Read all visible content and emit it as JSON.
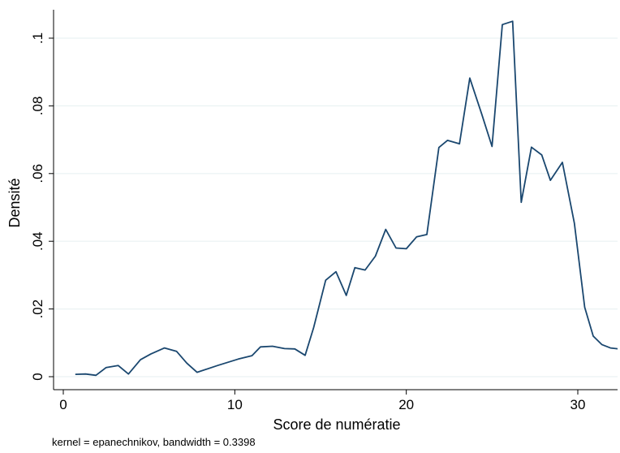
{
  "chart_data": {
    "type": "line",
    "title": "",
    "xlabel": "Score de numératie",
    "ylabel": "Densité",
    "note": "kernel = epanechnikov, bandwidth = 0.3398",
    "xlim": [
      0,
      32.5
    ],
    "ylim": [
      0,
      0.108
    ],
    "x_ticks": [
      0,
      10,
      20,
      30
    ],
    "x_tick_labels": [
      "0",
      "10",
      "20",
      "30"
    ],
    "y_ticks": [
      0,
      0.02,
      0.04,
      0.06,
      0.08,
      0.1
    ],
    "y_tick_labels": [
      "0",
      ".02",
      ".04",
      ".06",
      ".08",
      ".1"
    ],
    "grid": true,
    "legend": "none",
    "line_color": "#1a476f",
    "series": [
      {
        "x": [
          0.7,
          1.3,
          1.9,
          2.5,
          3.2,
          3.8,
          4.5,
          5.1,
          5.9,
          6.6,
          7.2,
          7.8,
          9.0,
          10.2,
          11.0,
          11.5,
          12.2,
          12.9,
          13.5,
          14.1,
          14.6,
          15.3,
          15.9,
          16.5,
          17.0,
          17.6,
          18.2,
          18.8,
          19.4,
          20.0,
          20.6,
          21.2,
          21.9,
          22.4,
          23.1,
          23.7,
          24.4,
          25.0,
          25.6,
          26.2,
          26.7,
          27.3,
          27.9,
          28.4,
          29.1,
          29.8,
          30.4,
          30.9,
          31.4,
          31.9,
          32.4
        ],
        "values": [
          0.0007,
          0.0008,
          0.0004,
          0.0027,
          0.0033,
          0.0008,
          0.005,
          0.0067,
          0.0085,
          0.0075,
          0.004,
          0.0013,
          0.0033,
          0.0052,
          0.0062,
          0.0088,
          0.009,
          0.0083,
          0.0082,
          0.0063,
          0.0145,
          0.0285,
          0.031,
          0.024,
          0.0322,
          0.0315,
          0.0356,
          0.0435,
          0.038,
          0.0378,
          0.0413,
          0.042,
          0.0677,
          0.0698,
          0.0688,
          0.0882,
          0.0775,
          0.068,
          0.104,
          0.105,
          0.0515,
          0.0678,
          0.0655,
          0.058,
          0.0633,
          0.0453,
          0.0205,
          0.012,
          0.0095,
          0.0085,
          0.0082
        ]
      }
    ]
  }
}
